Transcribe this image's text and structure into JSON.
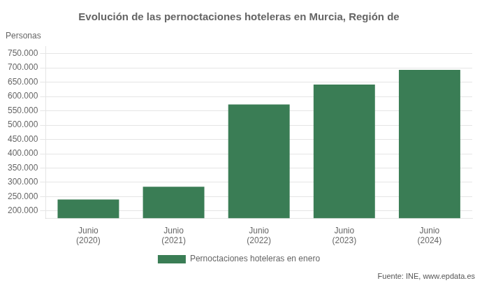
{
  "chart_data": {
    "type": "bar",
    "title": "Evolución de las pernoctaciones hoteleras en Murcia, Región de",
    "ylabel": "Personas",
    "source": "Fuente: INE, www.epdata.es",
    "categories": [
      "Junio\n(2020)",
      "Junio\n(2021)",
      "Junio\n(2022)",
      "Junio\n(2023)",
      "Junio\n(2024)"
    ],
    "series": [
      {
        "name": "Pernoctaciones hoteleras en enero",
        "color": "#3a7d55",
        "values": [
          240000,
          285000,
          572000,
          642000,
          693000
        ]
      }
    ],
    "ylim": [
      175000,
      775000
    ],
    "yticks": [
      {
        "value": 200000,
        "label": "200.000"
      },
      {
        "value": 250000,
        "label": "250.000"
      },
      {
        "value": 300000,
        "label": "300.000"
      },
      {
        "value": 350000,
        "label": "350.000"
      },
      {
        "value": 400000,
        "label": "400.000"
      },
      {
        "value": 450000,
        "label": "450.000"
      },
      {
        "value": 500000,
        "label": "500.000"
      },
      {
        "value": 550000,
        "label": "550.000"
      },
      {
        "value": 600000,
        "label": "600.000"
      },
      {
        "value": 650000,
        "label": "650.000"
      },
      {
        "value": 700000,
        "label": "700.000"
      },
      {
        "value": 750000,
        "label": "750.000"
      }
    ],
    "grid": true
  }
}
